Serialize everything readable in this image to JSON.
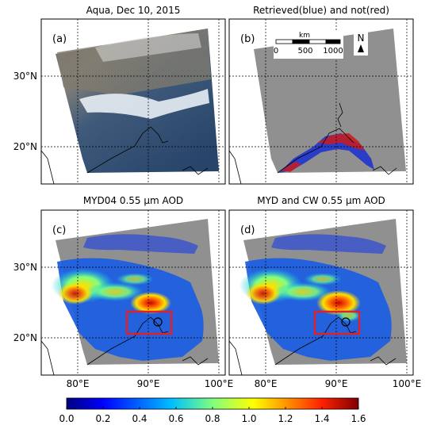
{
  "panels": [
    {
      "id": "a",
      "title": "Aqua, Dec 10, 2015",
      "tag": "(a)"
    },
    {
      "id": "b",
      "title": "Retrieved(blue) and not(red)",
      "tag": "(b)"
    },
    {
      "id": "c",
      "title": "MYD04 0.55 μm AOD",
      "tag": "(c)"
    },
    {
      "id": "d",
      "title": "MYD and CW 0.55 μm AOD",
      "tag": "(d)"
    }
  ],
  "axes": {
    "lat_ticks": [
      {
        "label": "30°N",
        "value": 30
      },
      {
        "label": "20°N",
        "value": 20
      }
    ],
    "lon_ticks": [
      {
        "label": "80°E",
        "value": 80
      },
      {
        "label": "90°E",
        "value": 90
      },
      {
        "label": "100°E",
        "value": 100
      }
    ]
  },
  "scalebar": {
    "unit": "km",
    "labels": [
      "0",
      "500",
      "1000"
    ],
    "north_label": "N"
  },
  "colorbar": {
    "ticks": [
      "0.0",
      "0.2",
      "0.4",
      "0.6",
      "0.8",
      "1.0",
      "1.2",
      "1.4",
      "1.6"
    ],
    "min": 0.0,
    "max": 1.6,
    "colors": [
      "#00007f",
      "#0000ff",
      "#007fff",
      "#00ffff",
      "#7fff7f",
      "#ffff00",
      "#ff7f00",
      "#ff0000",
      "#7f0000"
    ]
  }
}
